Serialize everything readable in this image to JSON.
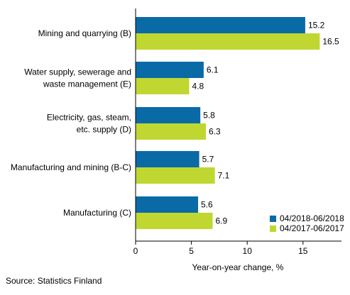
{
  "chart_data": {
    "type": "bar",
    "orientation": "horizontal",
    "categories": [
      [
        "Mining and quarrying (B)"
      ],
      [
        "Water supply, sewerage and",
        "waste management (E)"
      ],
      [
        "Electricity, gas, steam,",
        "etc. supply (D)"
      ],
      [
        "Manufacturing and mining (B-C)"
      ],
      [
        "Manufacturing (C)"
      ]
    ],
    "series": [
      {
        "name": "04/2018-06/2018",
        "color": "#0a6aa6",
        "values": [
          15.2,
          6.1,
          5.8,
          5.7,
          5.6
        ]
      },
      {
        "name": "04/2017-06/2017",
        "color": "#bfd730",
        "values": [
          16.5,
          4.8,
          6.3,
          7.1,
          6.9
        ]
      }
    ],
    "value_labels": [
      [
        "15.2",
        "6.1",
        "5.8",
        "5.7",
        "5.6"
      ],
      [
        "16.5",
        "4.8",
        "6.3",
        "7.1",
        "6.9"
      ]
    ],
    "xlabel": "Year-on-year change, %",
    "xlim": [
      0,
      18
    ],
    "xticks": [
      0,
      5,
      10,
      15
    ],
    "grid": false,
    "legend_position": "bottom-right"
  },
  "footer": {
    "source": "Source: Statistics Finland"
  }
}
